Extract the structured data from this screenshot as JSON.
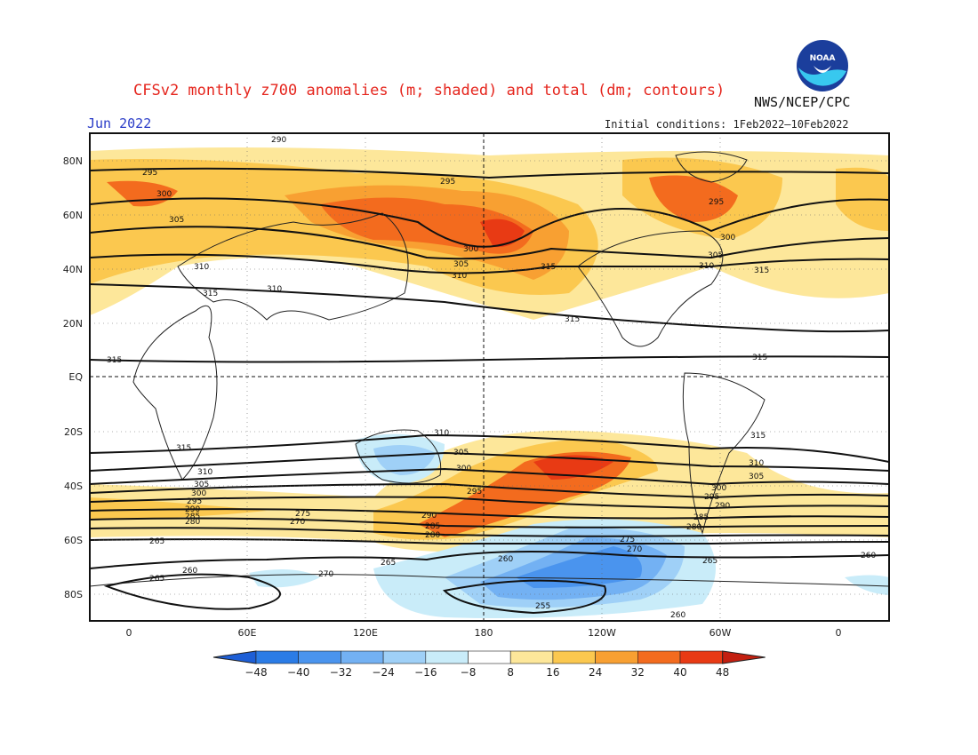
{
  "header": {
    "title": "CFSv2 monthly z700 anomalies (m; shaded) and total (dm; contours)",
    "agency": "NWS/NCEP/CPC",
    "month": "Jun 2022",
    "initial_conditions": "Initial conditions: 1Feb2022–10Feb2022"
  },
  "logo": {
    "text": "NOAA",
    "icon": "noaa-logo-icon"
  },
  "map": {
    "lat_ticks": [
      "80N",
      "60N",
      "40N",
      "20N",
      "EQ",
      "20S",
      "40S",
      "60S",
      "80S"
    ],
    "lon_ticks": [
      "0",
      "60E",
      "120E",
      "180",
      "120W",
      "60W",
      "0"
    ],
    "reference_lines": [
      "equator",
      "dateline"
    ]
  },
  "colorbar": {
    "ticks": [
      "−48",
      "−40",
      "−32",
      "−24",
      "−16",
      "−8",
      "8",
      "16",
      "24",
      "32",
      "40",
      "48"
    ],
    "colors": [
      "#1e5fd6",
      "#2b7ce6",
      "#4a94ee",
      "#73b1f3",
      "#9fd0f7",
      "#c9ecf9",
      "#ffffff",
      "#fde79a",
      "#fbc84f",
      "#f8a032",
      "#f36b1e",
      "#e83a14",
      "#c31f10"
    ]
  },
  "contour_labels": [
    "290",
    "295",
    "300",
    "305",
    "310",
    "315",
    "260",
    "265",
    "270",
    "275",
    "280",
    "285",
    "255"
  ]
}
